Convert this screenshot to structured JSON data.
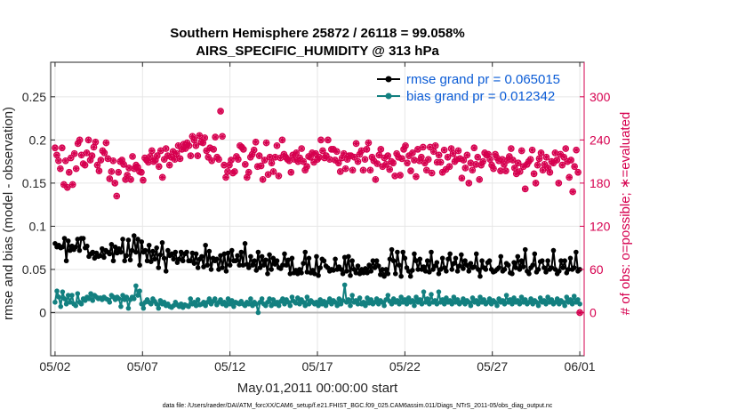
{
  "chart_data": {
    "type": "line",
    "title_line1": "Southern Hemisphere 25872 / 26118 = 99.058%",
    "title_line2": "AIRS_SPECIFIC_HUMIDITY @ 313 hPa",
    "xlabel": "May.01,2011 00:00:00 start",
    "ylabel_left": "rmse and bias (model - observation)",
    "ylabel_right": "# of obs: o=possible; ∗=evaluated",
    "footnote": "data file: /Users/raeder/DAI/ATM_forcXX/CAM6_setup/f.e21.FHIST_BGC.f09_025.CAM6assim.011/Diags_NTrS_2011-05/obs_diag_output.nc",
    "x_tick_labels": [
      "05/02",
      "05/07",
      "05/12",
      "05/17",
      "05/22",
      "05/27",
      "06/01"
    ],
    "x_tick_days": [
      1,
      6,
      11,
      16,
      21,
      26,
      31
    ],
    "xlim_days": [
      0.75,
      31.25
    ],
    "left_axis": {
      "ticks": [
        0,
        0.05,
        0.1,
        0.15,
        0.2,
        0.25
      ],
      "tick_labels": [
        "0",
        "0.05",
        "0.1",
        "0.15",
        "0.2",
        "0.25"
      ],
      "ylim": [
        -0.05,
        0.29
      ]
    },
    "right_axis": {
      "ticks": [
        0,
        60,
        120,
        180,
        240,
        300
      ],
      "tick_labels": [
        "0",
        "60",
        "120",
        "180",
        "240",
        "300"
      ],
      "ylim": [
        -60,
        348
      ]
    },
    "grid": true,
    "legend_position": "top-right",
    "colors": {
      "rmse": "#000000",
      "bias": "#138080",
      "obs": "#d6004f",
      "zero_line": "#b4b4b4",
      "axis": "#262626"
    },
    "series": [
      {
        "name": "rmse grand pr = 0.065015",
        "legend_label": "rmse grand pr = 0.065015",
        "values": [
          0.08,
          0.076,
          0.078,
          0.075,
          0.076,
          0.086,
          0.06,
          0.083,
          0.072,
          0.077,
          0.073,
          0.076,
          0.085,
          0.072,
          0.086,
          0.086,
          0.075,
          0.077,
          0.065,
          0.068,
          0.07,
          0.063,
          0.069,
          0.065,
          0.066,
          0.074,
          0.064,
          0.072,
          0.07,
          0.068,
          0.079,
          0.06,
          0.076,
          0.069,
          0.074,
          0.07,
          0.085,
          0.06,
          0.066,
          0.084,
          0.061,
          0.072,
          0.089,
          0.07,
          0.085,
          0.055,
          0.082,
          0.07,
          0.072,
          0.06,
          0.078,
          0.059,
          0.071,
          0.062,
          0.075,
          0.052,
          0.067,
          0.081,
          0.063,
          0.048,
          0.072,
          0.066,
          0.068,
          0.062,
          0.07,
          0.058,
          0.062,
          0.07,
          0.06,
          0.068,
          0.07,
          0.06,
          0.06,
          0.069,
          0.057,
          0.068,
          0.052,
          0.062,
          0.065,
          0.053,
          0.078,
          0.055,
          0.071,
          0.05,
          0.063,
          0.06,
          0.062,
          0.05,
          0.066,
          0.052,
          0.068,
          0.048,
          0.069,
          0.055,
          0.072,
          0.06,
          0.06,
          0.066,
          0.055,
          0.07,
          0.055,
          0.08,
          0.056,
          0.052,
          0.065,
          0.055,
          0.06,
          0.049,
          0.07,
          0.052,
          0.065,
          0.055,
          0.061,
          0.045,
          0.067,
          0.05,
          0.063,
          0.056,
          0.06,
          0.052,
          0.051,
          0.055,
          0.068,
          0.055,
          0.061,
          0.045,
          0.063,
          0.046,
          0.049,
          0.045,
          0.05,
          0.046,
          0.057,
          0.07,
          0.047,
          0.063,
          0.046,
          0.049,
          0.045,
          0.065,
          0.043,
          0.052,
          0.062,
          0.06,
          0.054,
          0.052,
          0.048,
          0.05,
          0.049,
          0.062,
          0.05,
          0.053,
          0.05,
          0.045,
          0.064,
          0.048,
          0.065,
          0.043,
          0.06,
          0.05,
          0.046,
          0.054,
          0.045,
          0.05,
          0.046,
          0.051,
          0.046,
          0.055,
          0.048,
          0.06,
          0.052,
          0.06,
          0.054,
          0.044,
          0.05,
          0.042,
          0.05,
          0.045,
          0.062,
          0.073,
          0.06,
          0.045,
          0.07,
          0.055,
          0.042,
          0.07,
          0.063,
          0.052,
          0.048,
          0.042,
          0.049,
          0.068,
          0.06,
          0.05,
          0.062,
          0.05,
          0.053,
          0.048,
          0.06,
          0.047,
          0.07,
          0.05,
          0.054,
          0.058,
          0.045,
          0.05,
          0.063,
          0.052,
          0.048,
          0.062,
          0.068,
          0.05,
          0.057,
          0.063,
          0.048,
          0.054,
          0.067,
          0.051,
          0.06,
          0.055,
          0.048,
          0.057,
          0.052,
          0.053,
          0.068,
          0.05,
          0.042,
          0.06,
          0.052,
          0.05,
          0.058,
          0.06,
          0.05,
          0.047,
          0.048,
          0.05,
          0.052,
          0.065,
          0.048,
          0.05,
          0.057,
          0.055,
          0.046,
          0.045,
          0.058,
          0.052,
          0.065,
          0.05,
          0.06,
          0.053,
          0.073,
          0.048,
          0.045,
          0.052,
          0.055,
          0.068,
          0.047,
          0.05,
          0.059,
          0.06,
          0.052,
          0.047,
          0.06,
          0.05,
          0.052,
          0.072,
          0.05,
          0.045,
          0.048,
          0.06,
          0.052,
          0.06,
          0.046,
          0.05,
          0.063,
          0.05,
          0.052,
          0.07,
          0.048,
          0.05
        ]
      },
      {
        "name": "bias grand pr = 0.012342",
        "legend_label": "bias grand pr = 0.012342",
        "values": [
          0.012,
          0.025,
          0.018,
          0.007,
          0.024,
          0.016,
          0.01,
          0.02,
          0.012,
          0.02,
          0.01,
          0.008,
          0.022,
          0.012,
          0.01,
          0.016,
          0.014,
          0.018,
          0.016,
          0.022,
          0.014,
          0.02,
          0.018,
          0.016,
          0.017,
          0.015,
          0.018,
          0.016,
          0.015,
          0.012,
          0.02,
          0.018,
          0.015,
          0.018,
          0.016,
          0.007,
          0.02,
          0.015,
          0.018,
          0.005,
          0.015,
          0.018,
          0.016,
          0.031,
          0.02,
          0.025,
          0.01,
          0.005,
          0.012,
          0.015,
          0.012,
          0.01,
          0.016,
          0.013,
          0.01,
          0.005,
          0.014,
          0.01,
          0.012,
          0.008,
          0.01,
          0.007,
          0.006,
          0.008,
          0.012,
          0.009,
          0.007,
          0.01,
          0.006,
          0.009,
          0.008,
          0.007,
          0.016,
          0.01,
          0.012,
          0.008,
          0.015,
          0.009,
          0.01,
          0.012,
          0.008,
          0.012,
          0.016,
          0.01,
          0.013,
          0.016,
          0.009,
          0.012,
          0.015,
          0.01,
          0.012,
          0.008,
          0.016,
          0.01,
          0.014,
          0.007,
          0.012,
          0.011,
          0.01,
          0.013,
          0.01,
          0.008,
          0.012,
          0.01,
          0.016,
          0.008,
          0.012,
          0.01,
          0.0,
          0.012,
          0.016,
          0.01,
          0.008,
          0.012,
          0.016,
          0.008,
          0.015,
          0.01,
          0.012,
          0.008,
          0.013,
          0.016,
          0.01,
          0.015,
          0.012,
          0.008,
          0.018,
          0.013,
          0.011,
          0.017,
          0.01,
          0.015,
          0.012,
          0.008,
          0.018,
          0.01,
          0.014,
          0.012,
          0.01,
          0.012,
          0.008,
          0.015,
          0.01,
          0.013,
          0.008,
          0.012,
          0.016,
          0.01,
          0.014,
          0.012,
          0.008,
          0.016,
          0.01,
          0.014,
          0.032,
          0.012,
          0.015,
          0.008,
          0.02,
          0.012,
          0.014,
          0.01,
          0.017,
          0.01,
          0.012,
          0.008,
          0.017,
          0.011,
          0.015,
          0.01,
          0.012,
          0.016,
          0.01,
          0.014,
          0.012,
          0.008,
          0.015,
          0.02,
          0.013,
          0.01,
          0.016,
          0.012,
          0.014,
          0.01,
          0.018,
          0.012,
          0.015,
          0.01,
          0.017,
          0.012,
          0.014,
          0.008,
          0.018,
          0.012,
          0.015,
          0.01,
          0.024,
          0.012,
          0.016,
          0.01,
          0.021,
          0.012,
          0.014,
          0.01,
          0.024,
          0.012,
          0.015,
          0.01,
          0.017,
          0.012,
          0.014,
          0.01,
          0.018,
          0.012,
          0.015,
          0.01,
          0.012,
          0.016,
          0.01,
          0.014,
          0.012,
          0.008,
          0.017,
          0.012,
          0.014,
          0.01,
          0.018,
          0.012,
          0.015,
          0.01,
          0.012,
          0.016,
          0.01,
          0.014,
          0.012,
          0.008,
          0.016,
          0.012,
          0.014,
          0.01,
          0.02,
          0.012,
          0.015,
          0.01,
          0.017,
          0.012,
          0.014,
          0.01,
          0.018,
          0.012,
          0.015,
          0.01,
          0.012,
          0.016,
          0.01,
          0.014,
          0.012,
          0.008,
          0.017,
          0.012,
          0.014,
          0.01,
          0.018,
          0.012,
          0.015,
          0.01,
          0.012,
          0.016,
          0.01,
          0.014,
          0.012,
          0.008,
          0.018,
          0.012,
          0.015,
          0.01,
          0.019,
          0.012,
          0.015,
          0.01
        ]
      },
      {
        "name": "# of obs (possible / evaluated)",
        "axis": "right",
        "values": [
          229,
          219,
          211,
          200,
          229,
          178,
          211,
          174,
          195,
          215,
          178,
          221,
          200,
          235,
          240,
          219,
          207,
          205,
          222,
          240,
          212,
          218,
          230,
          237,
          205,
          197,
          212,
          225,
          222,
          236,
          214,
          186,
          196,
          211,
          180,
          162,
          195,
          210,
          212,
          206,
          185,
          191,
          201,
          185,
          217,
          200,
          205,
          202,
          196,
          195,
          184,
          215,
          212,
          209,
          217,
          225,
          210,
          212,
          218,
          203,
          225,
          188,
          213,
          228,
          218,
          205,
          216,
          224,
          213,
          221,
          232,
          214,
          227,
          234,
          228,
          236,
          232,
          218,
          245,
          240,
          232,
          218,
          246,
          237,
          236,
          243,
          225,
          216,
          229,
          211,
          227,
          244,
          216,
          213,
          280,
          245,
          205,
          188,
          196,
          205,
          212,
          194,
          196,
          217,
          213,
          232,
          230,
          227,
          206,
          188,
          195,
          216,
          220,
          226,
          237,
          203,
          218,
          204,
          185,
          212,
          236,
          192,
          216,
          208,
          196,
          216,
          232,
          190,
          215,
          240,
          220,
          216,
          213,
          211,
          195,
          219,
          213,
          222,
          210,
          215,
          228,
          210,
          198,
          203,
          217,
          216,
          222,
          209,
          221,
          213,
          216,
          240,
          225,
          215,
          218,
          240,
          213,
          227,
          227,
          212,
          224,
          208,
          196,
          215,
          221,
          200,
          213,
          218,
          218,
          198,
          216,
          235,
          210,
          220,
          225,
          198,
          213,
          227,
          236,
          198,
          216,
          211,
          185,
          207,
          219,
          227,
          203,
          215,
          206,
          218,
          199,
          210,
          208,
          190,
          221,
          216,
          191,
          214,
          227,
          232,
          208,
          218,
          197,
          222,
          212,
          189,
          227,
          211,
          216,
          230,
          208,
          198,
          213,
          230,
          194,
          224,
          232,
          209,
          219,
          209,
          195,
          226,
          199,
          216,
          203,
          228,
          221,
          210,
          213,
          225,
          214,
          187,
          212,
          201,
          219,
          180,
          208,
          198,
          229,
          206,
          216,
          185,
          205,
          210,
          222,
          219,
          220,
          213,
          205,
          200,
          220,
          215,
          211,
          197,
          213,
          206,
          197,
          212,
          217,
          228,
          212,
          201,
          193,
          208,
          196,
          225,
          203,
          172,
          206,
          210,
          213,
          226,
          193,
          180,
          205,
          214,
          222,
          198,
          206,
          216,
          201,
          195,
          210,
          208,
          222,
          212,
          180,
          220,
          205,
          216,
          228,
          210,
          188,
          212,
          168,
          203,
          226,
          195,
          0
        ]
      }
    ]
  }
}
